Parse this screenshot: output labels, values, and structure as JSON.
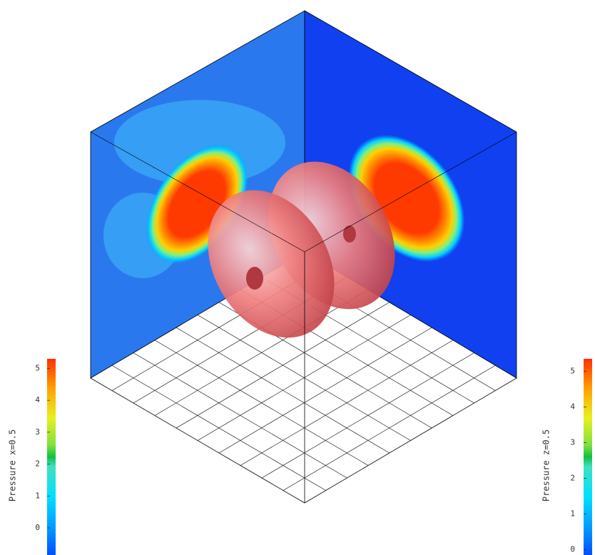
{
  "chart_data": [
    {
      "type": "colorbar",
      "ylabel": "Pressure x=0.5",
      "ylim": [
        -0.85,
        5.3
      ],
      "yticks": [
        0,
        1,
        2,
        3,
        4,
        5
      ]
    },
    {
      "type": "colorbar",
      "ylabel": "Pressure z=0.5",
      "ylim": [
        -0.15,
        5.35
      ],
      "yticks": [
        0,
        1,
        2,
        3,
        4,
        5
      ]
    }
  ]
}
